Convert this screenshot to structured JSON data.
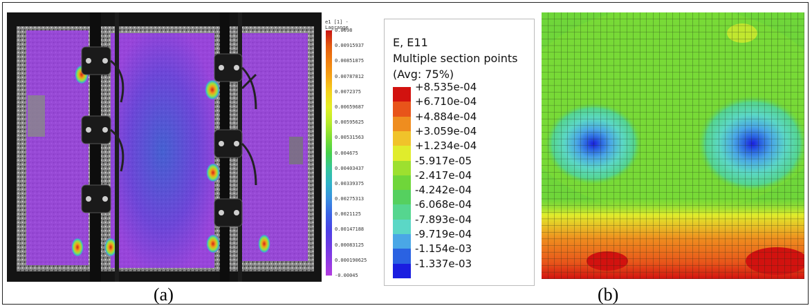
{
  "panel_a": {
    "caption": "(a)",
    "legend_title": "e1 [1] -\nLagrange",
    "legend_values": [
      "0.0098",
      "0.00915937",
      "0.00851875",
      "0.00787812",
      "0.0072375",
      "0.00659687",
      "0.00595625",
      "0.00531563",
      "0.004675",
      "0.00403437",
      "0.00339375",
      "0.00275313",
      "0.0021125",
      "0.00147188",
      "0.00083125",
      "0.000190625",
      "-0.00045"
    ],
    "legend_colors": [
      "#c81414",
      "#e35a0f",
      "#f07f11",
      "#f6a315",
      "#f4d21d",
      "#e4ef27",
      "#b9ec2c",
      "#7ede33",
      "#45d14a",
      "#35c59a",
      "#2fb3c9",
      "#3a8fe0",
      "#3a63e6",
      "#4b42e6",
      "#6b3ae4",
      "#8d3ae3",
      "#b23ce0"
    ]
  },
  "panel_b": {
    "caption": "(b)",
    "legend_title": [
      "E, E11",
      "Multiple section points",
      "(Avg: 75%)"
    ],
    "legend_values": [
      "+8.535e-04",
      "+6.710e-04",
      "+4.884e-04",
      "+3.059e-04",
      "+1.234e-04",
      "-5.917e-05",
      "-2.417e-04",
      "-4.242e-04",
      "-6.068e-04",
      "-7.893e-04",
      "-9.719e-04",
      "-1.154e-03",
      "-1.337e-03"
    ],
    "legend_colors": [
      "#d2120f",
      "#e8541a",
      "#ef8d1f",
      "#f0c32a",
      "#e0ec2c",
      "#9de02f",
      "#6fd63a",
      "#55d05f",
      "#55d68f",
      "#5bd7c6",
      "#4aa7e6",
      "#2a62e2",
      "#1a1ee0"
    ]
  }
}
